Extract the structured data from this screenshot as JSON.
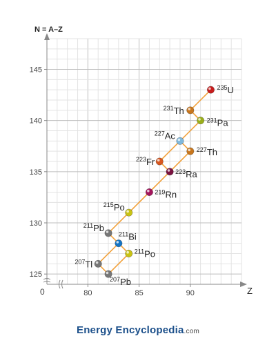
{
  "chart_data": {
    "type": "scatter",
    "ylabel": "N = A–Z",
    "xlabel": "Z",
    "origin_label": "0",
    "xlim": [
      76,
      95
    ],
    "ylim": [
      124,
      148
    ],
    "x_ticks": [
      80,
      85,
      90
    ],
    "y_ticks": [
      125,
      130,
      135,
      140,
      145
    ],
    "grid": true,
    "axis_break": true,
    "nuclides": [
      {
        "mass": "235",
        "symbol": "U",
        "z": 92,
        "n": 143,
        "color": "#c81d1d"
      },
      {
        "mass": "231",
        "symbol": "Th",
        "z": 90,
        "n": 141,
        "color": "#c8761d"
      },
      {
        "mass": "231",
        "symbol": "Pa",
        "z": 91,
        "n": 140,
        "color": "#9aae1a"
      },
      {
        "mass": "227",
        "symbol": "Ac",
        "z": 89,
        "n": 138,
        "color": "#7fb8dc"
      },
      {
        "mass": "227",
        "symbol": "Th",
        "z": 90,
        "n": 137,
        "color": "#c8761d"
      },
      {
        "mass": "223",
        "symbol": "Fr",
        "z": 87,
        "n": 136,
        "color": "#d9571f"
      },
      {
        "mass": "223",
        "symbol": "Ra",
        "z": 88,
        "n": 135,
        "color": "#7a1340"
      },
      {
        "mass": "219",
        "symbol": "Rn",
        "z": 86,
        "n": 133,
        "color": "#a3155c"
      },
      {
        "mass": "215",
        "symbol": "Po",
        "z": 84,
        "n": 131,
        "color": "#c9c313"
      },
      {
        "mass": "211",
        "symbol": "Pb",
        "z": 82,
        "n": 129,
        "color": "#777777"
      },
      {
        "mass": "211",
        "symbol": "Bi",
        "z": 83,
        "n": 128,
        "color": "#1574c4"
      },
      {
        "mass": "211",
        "symbol": "Po",
        "z": 84,
        "n": 127,
        "color": "#c9c313"
      },
      {
        "mass": "207",
        "symbol": "Tl",
        "z": 81,
        "n": 126,
        "color": "#777777"
      },
      {
        "mass": "207",
        "symbol": "Pb",
        "z": 82,
        "n": 125,
        "color": "#777777"
      }
    ],
    "links": [
      [
        0,
        1
      ],
      [
        1,
        2
      ],
      [
        2,
        3
      ],
      [
        3,
        4
      ],
      [
        3,
        5
      ],
      [
        4,
        6
      ],
      [
        5,
        6
      ],
      [
        6,
        7
      ],
      [
        7,
        8
      ],
      [
        8,
        9
      ],
      [
        9,
        10
      ],
      [
        10,
        11
      ],
      [
        10,
        12
      ],
      [
        11,
        13
      ],
      [
        12,
        13
      ]
    ],
    "line_color": "#f2a23c"
  },
  "footer": {
    "brand1": "Energy",
    "brand2": "Encyclopedia",
    "brand3": ".com"
  }
}
